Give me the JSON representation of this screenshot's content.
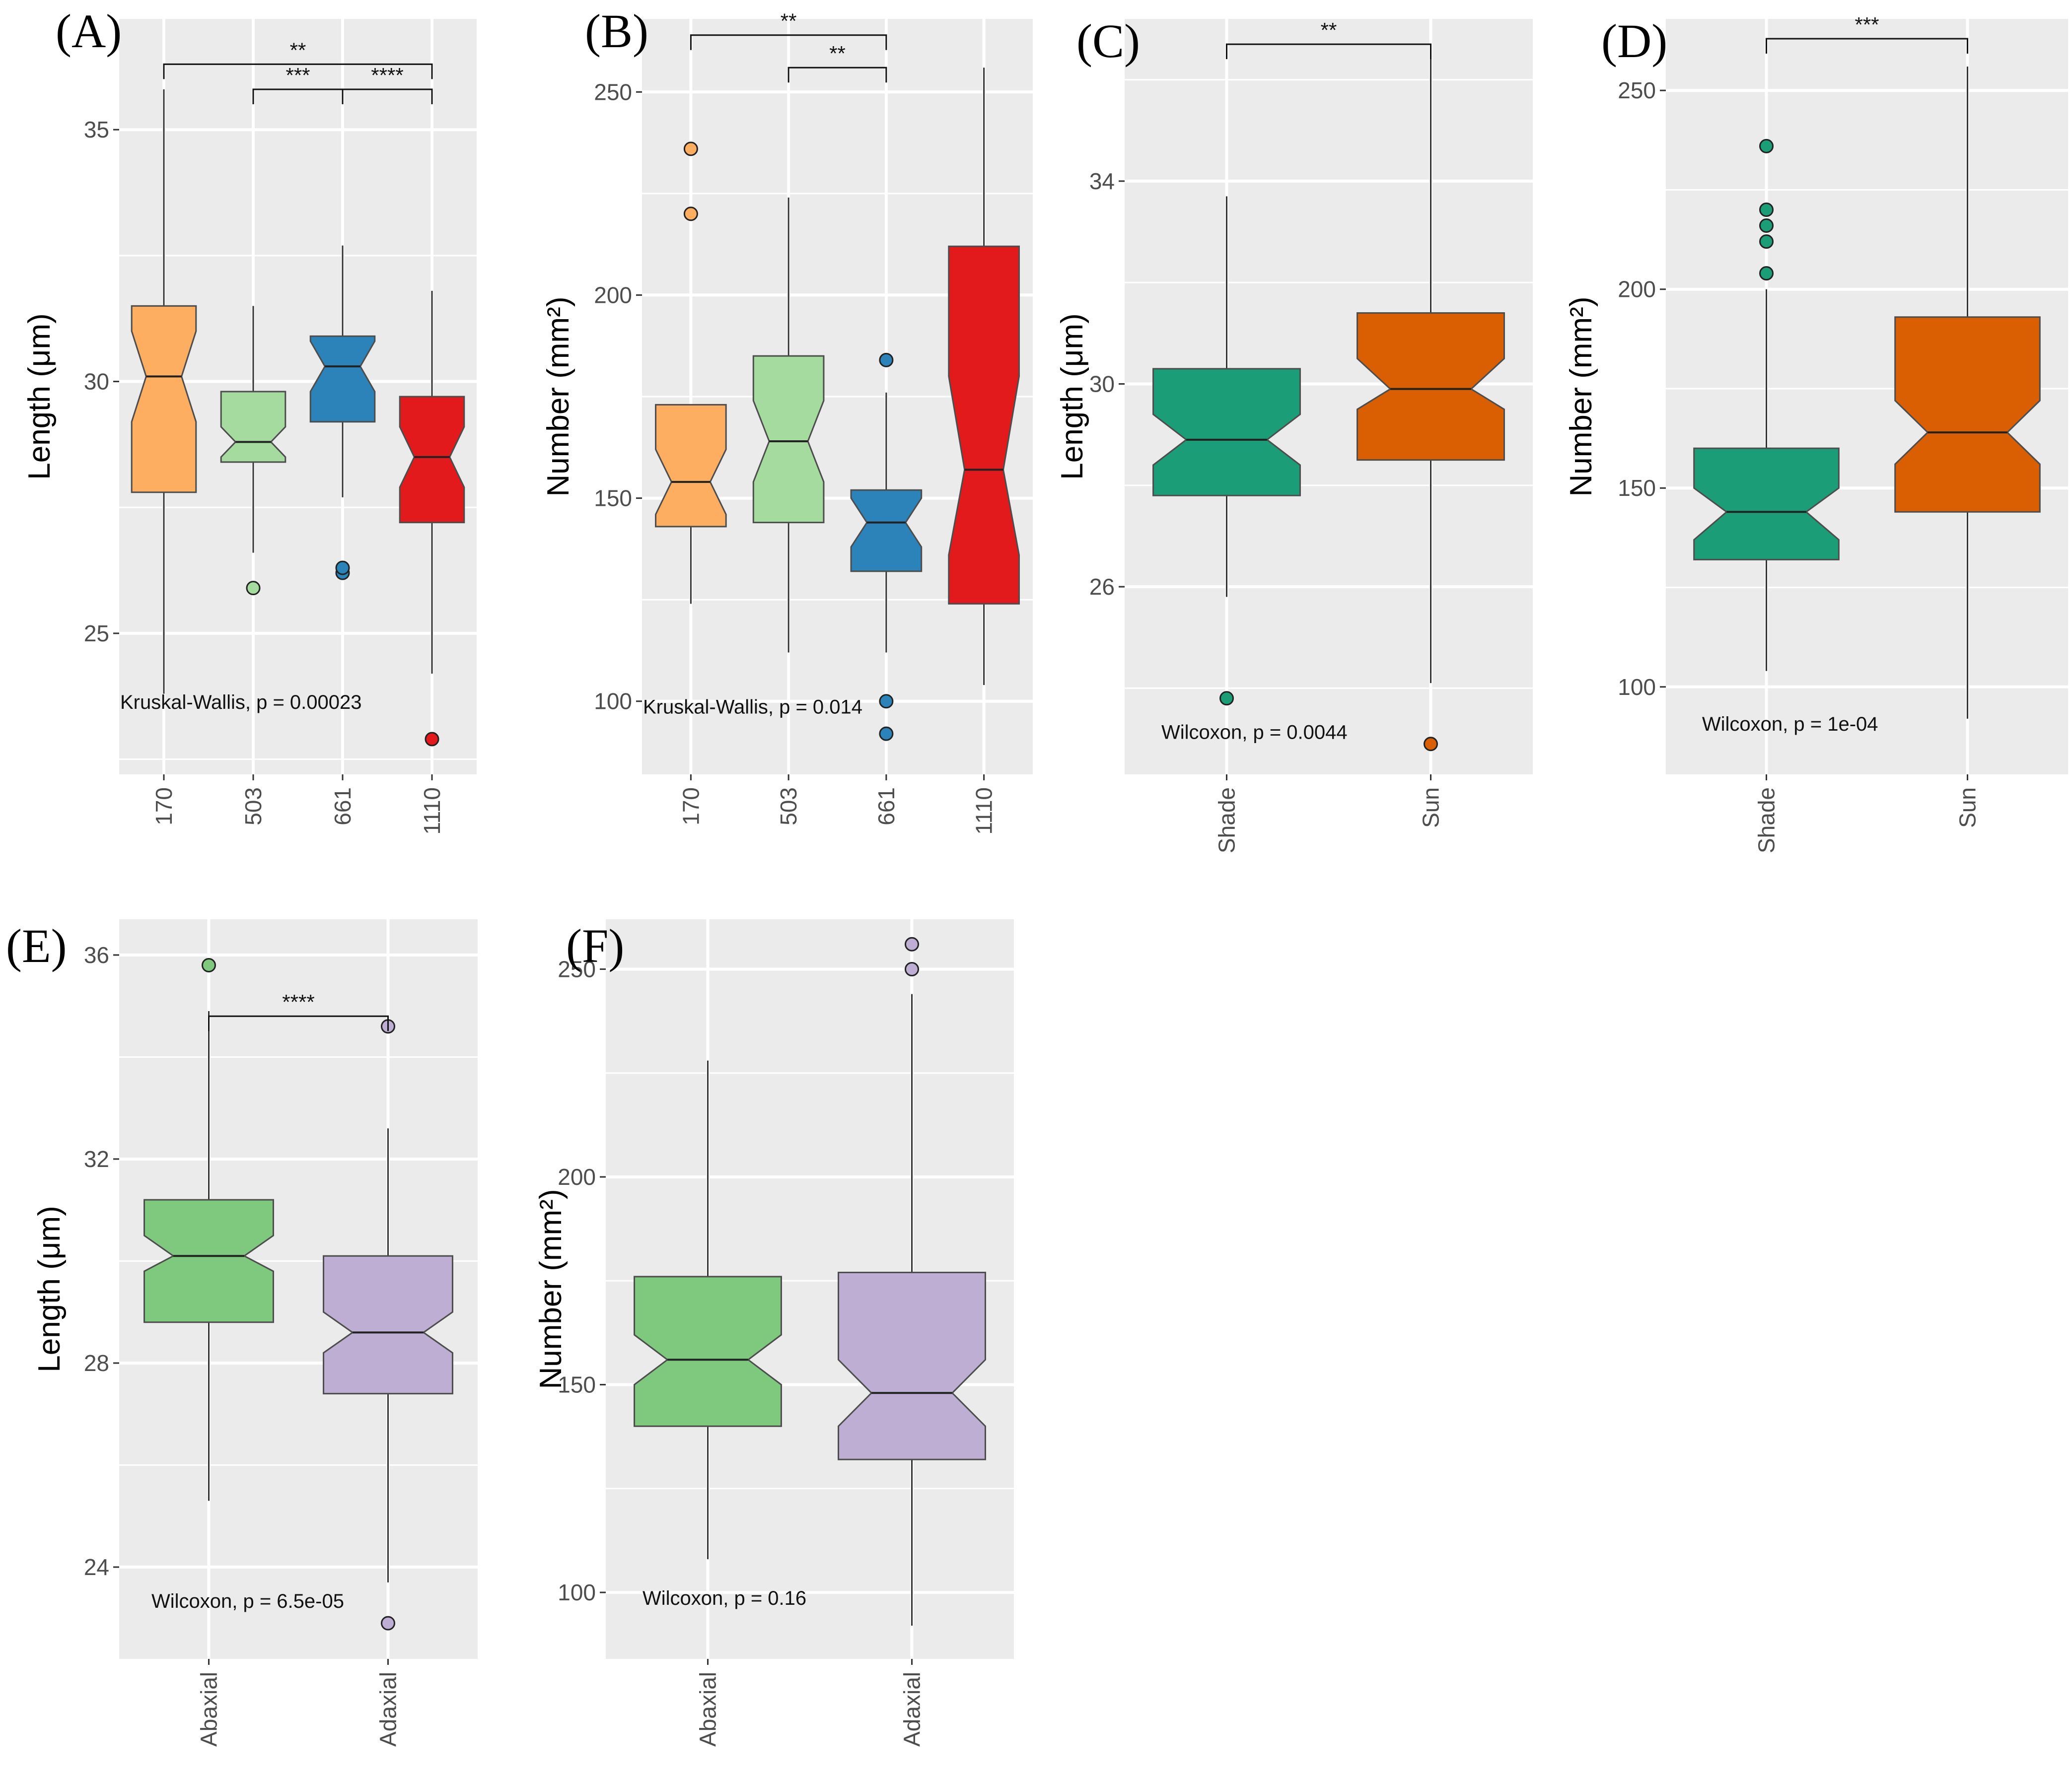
{
  "figure": {
    "colors": {
      "panel_bg": "#ebebeb",
      "grid": "#ffffff",
      "box_outline": "#4d4d4d",
      "whisker": "#333333"
    },
    "panels": [
      {
        "letter": "(A)",
        "chart_data": {
          "type": "boxplot-notched",
          "ylabel": "Length (μm)",
          "xlabel": "",
          "ylim": [
            22.2,
            37.2
          ],
          "yticks": [
            25,
            30,
            35
          ],
          "categories": [
            "170",
            "503",
            "661",
            "1110"
          ],
          "x_tick_orientation": "vertical",
          "boxes": [
            {
              "category": "170",
              "color": "#fdae61",
              "q1": 27.8,
              "median": 30.1,
              "q3": 31.5,
              "notch_low": 29.2,
              "notch_high": 31.0,
              "whisker_low": 23.8,
              "whisker_high": 35.8,
              "outliers": []
            },
            {
              "category": "503",
              "color": "#a6dba0",
              "q1": 28.4,
              "median": 28.8,
              "q3": 29.8,
              "notch_low": 28.5,
              "notch_high": 29.1,
              "whisker_low": 26.6,
              "whisker_high": 31.5,
              "outliers": [
                25.9
              ]
            },
            {
              "category": "661",
              "color": "#2b83ba",
              "q1": 29.2,
              "median": 30.3,
              "q3": 30.9,
              "notch_low": 29.8,
              "notch_high": 30.8,
              "whisker_low": 27.7,
              "whisker_high": 32.7,
              "outliers": [
                26.2,
                26.3
              ]
            },
            {
              "category": "1110",
              "color": "#e31a1c",
              "q1": 27.2,
              "median": 28.5,
              "q3": 29.7,
              "notch_low": 27.9,
              "notch_high": 29.1,
              "whisker_low": 24.2,
              "whisker_high": 31.8,
              "outliers": [
                22.9
              ]
            }
          ],
          "test_label": "Kruskal-Wallis, p = 0.00023",
          "test_y": 23.5,
          "test_anchor_category": 0,
          "significance": [
            {
              "from": "170",
              "to": "1110",
              "label": "**",
              "y": 36.3
            },
            {
              "from": "503",
              "to": "661",
              "label": "***",
              "y": 35.8
            },
            {
              "from": "661",
              "to": "1110",
              "label": "****",
              "y": 35.8
            }
          ]
        }
      },
      {
        "letter": "(B)",
        "chart_data": {
          "type": "boxplot-notched",
          "ylabel": "Number (mm²)",
          "xlabel": "",
          "ylim": [
            82,
            268
          ],
          "yticks": [
            100,
            150,
            200,
            250
          ],
          "categories": [
            "170",
            "503",
            "661",
            "1110"
          ],
          "x_tick_orientation": "vertical",
          "boxes": [
            {
              "category": "170",
              "color": "#fdae61",
              "q1": 143,
              "median": 154,
              "q3": 173,
              "notch_low": 146,
              "notch_high": 162,
              "whisker_low": 124,
              "whisker_high": 173,
              "outliers": [
                220,
                236
              ]
            },
            {
              "category": "503",
              "color": "#a6dba0",
              "q1": 144,
              "median": 164,
              "q3": 185,
              "notch_low": 154,
              "notch_high": 174,
              "whisker_low": 112,
              "whisker_high": 224,
              "outliers": []
            },
            {
              "category": "661",
              "color": "#2b83ba",
              "q1": 132,
              "median": 144,
              "q3": 152,
              "notch_low": 138,
              "notch_high": 150,
              "whisker_low": 112,
              "whisker_high": 176,
              "outliers": [
                184,
                100,
                92
              ]
            },
            {
              "category": "1110",
              "color": "#e31a1c",
              "q1": 124,
              "median": 157,
              "q3": 212,
              "notch_low": 136,
              "notch_high": 180,
              "whisker_low": 104,
              "whisker_high": 256,
              "outliers": []
            }
          ],
          "test_label": "Kruskal-Wallis, p = 0.014",
          "test_y": 97,
          "test_anchor_category": 0,
          "significance": [
            {
              "from": "170",
              "to": "661",
              "label": "**",
              "y": 264
            },
            {
              "from": "503",
              "to": "661",
              "label": "**",
              "y": 256
            }
          ]
        }
      },
      {
        "letter": "(C)",
        "chart_data": {
          "type": "boxplot-notched",
          "ylabel": "Length (μm)",
          "xlabel": "",
          "ylim": [
            22.3,
            37.2
          ],
          "yticks": [
            26,
            30,
            34
          ],
          "categories": [
            "Shade",
            "Sun"
          ],
          "x_tick_orientation": "vertical",
          "boxes": [
            {
              "category": "Shade",
              "color": "#1b9e77",
              "q1": 27.8,
              "median": 28.9,
              "q3": 30.3,
              "notch_low": 28.4,
              "notch_high": 29.4,
              "whisker_low": 25.8,
              "whisker_high": 33.7,
              "outliers": [
                23.8
              ]
            },
            {
              "category": "Sun",
              "color": "#d95f02",
              "q1": 28.5,
              "median": 29.9,
              "q3": 31.4,
              "notch_low": 29.5,
              "notch_high": 30.5,
              "whisker_low": 24.1,
              "whisker_high": 36.5,
              "outliers": [
                22.9
              ]
            }
          ],
          "test_label": "Wilcoxon, p = 0.0044",
          "test_y": 23.0,
          "test_anchor_category": 0,
          "significance": [
            {
              "from": "Shade",
              "to": "Sun",
              "label": "**",
              "y": 36.7
            }
          ]
        }
      },
      {
        "letter": "(D)",
        "chart_data": {
          "type": "boxplot-notched",
          "ylabel": "Number (mm²)",
          "xlabel": "",
          "ylim": [
            78,
            268
          ],
          "yticks": [
            100,
            150,
            200,
            250
          ],
          "categories": [
            "Shade",
            "Sun"
          ],
          "x_tick_orientation": "vertical",
          "boxes": [
            {
              "category": "Shade",
              "color": "#1b9e77",
              "q1": 132,
              "median": 144,
              "q3": 160,
              "notch_low": 137,
              "notch_high": 150,
              "whisker_low": 104,
              "whisker_high": 200,
              "outliers": [
                204,
                212,
                216,
                220,
                236
              ]
            },
            {
              "category": "Sun",
              "color": "#d95f02",
              "q1": 144,
              "median": 164,
              "q3": 193,
              "notch_low": 156,
              "notch_high": 172,
              "whisker_low": 92,
              "whisker_high": 256,
              "outliers": []
            }
          ],
          "test_label": "Wilcoxon, p = 1e-04",
          "test_y": 89,
          "test_anchor_category": 0,
          "significance": [
            {
              "from": "Shade",
              "to": "Sun",
              "label": "***",
              "y": 263
            }
          ]
        }
      },
      {
        "letter": "(E)",
        "chart_data": {
          "type": "boxplot-notched",
          "ylabel": "Length (μm)",
          "xlabel": "",
          "ylim": [
            22.2,
            36.7
          ],
          "yticks": [
            24,
            28,
            32,
            36
          ],
          "categories": [
            "Abaxial",
            "Adaxial"
          ],
          "x_tick_orientation": "vertical",
          "boxes": [
            {
              "category": "Abaxial",
              "color": "#7fc97f",
              "q1": 28.8,
              "median": 30.1,
              "q3": 31.2,
              "notch_low": 29.8,
              "notch_high": 30.5,
              "whisker_low": 25.3,
              "whisker_high": 34.9,
              "outliers": [
                35.8
              ]
            },
            {
              "category": "Adaxial",
              "color": "#beaed4",
              "q1": 27.4,
              "median": 28.6,
              "q3": 30.1,
              "notch_low": 28.2,
              "notch_high": 29.0,
              "whisker_low": 23.7,
              "whisker_high": 32.6,
              "outliers": [
                34.6,
                22.9
              ]
            }
          ],
          "test_label": "Wilcoxon, p = 6.5e-05",
          "test_y": 23.2,
          "test_anchor_category": 0,
          "significance": [
            {
              "from": "Abaxial",
              "to": "Adaxial",
              "label": "****",
              "y": 34.8
            }
          ]
        }
      },
      {
        "letter": "(F)",
        "chart_data": {
          "type": "boxplot-notched",
          "ylabel": "Number (mm²)",
          "xlabel": "",
          "ylim": [
            84,
            262
          ],
          "yticks": [
            100,
            150,
            200,
            250
          ],
          "categories": [
            "Abaxial",
            "Adaxial"
          ],
          "x_tick_orientation": "vertical",
          "boxes": [
            {
              "category": "Abaxial",
              "color": "#7fc97f",
              "q1": 140,
              "median": 156,
              "q3": 176,
              "notch_low": 150,
              "notch_high": 162,
              "whisker_low": 108,
              "whisker_high": 228,
              "outliers": []
            },
            {
              "category": "Adaxial",
              "color": "#beaed4",
              "q1": 132,
              "median": 148,
              "q3": 177,
              "notch_low": 140,
              "notch_high": 156,
              "whisker_low": 92,
              "whisker_high": 244,
              "outliers": [
                250,
                256
              ]
            }
          ],
          "test_label": "Wilcoxon, p = 0.16",
          "test_y": 97,
          "test_anchor_category": 0,
          "significance": []
        }
      }
    ]
  }
}
